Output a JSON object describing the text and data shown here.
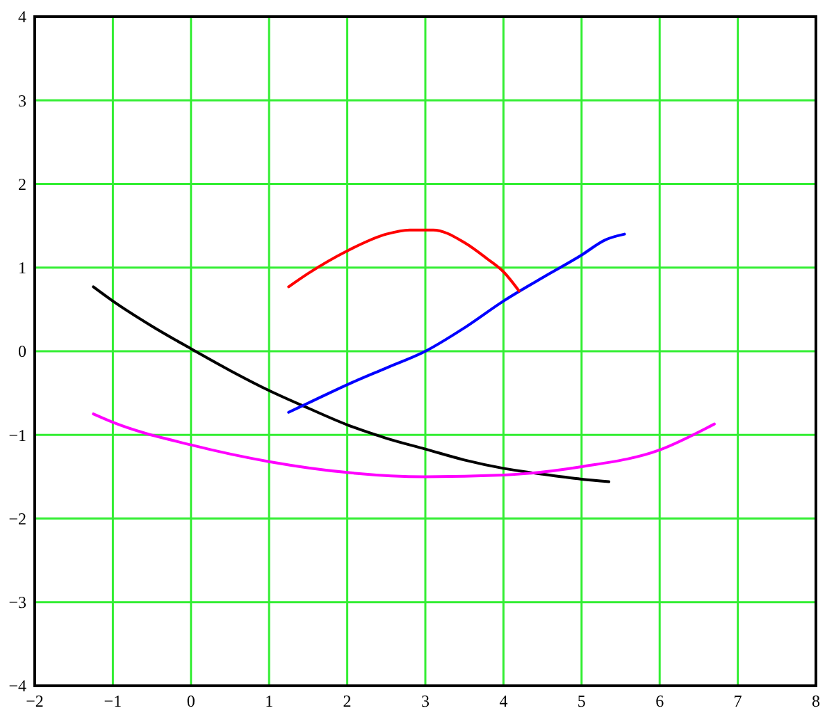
{
  "chart_data": {
    "type": "line",
    "xlim": [
      -2,
      8
    ],
    "ylim": [
      -4,
      4
    ],
    "xticks": [
      {
        "value": -2,
        "label": "−2"
      },
      {
        "value": -1,
        "label": "−1"
      },
      0,
      1,
      2,
      3,
      4,
      5,
      6,
      7,
      8
    ],
    "yticks": [
      {
        "value": -4,
        "label": "−4"
      },
      {
        "value": -3,
        "label": "−3"
      },
      {
        "value": -2,
        "label": "−2"
      },
      {
        "value": -1,
        "label": "−1"
      },
      0,
      1,
      2,
      3,
      4
    ],
    "grid": true,
    "marker": "none",
    "line_style": "solid",
    "series": [
      {
        "color": "#000000",
        "x": [
          -1.25,
          -1,
          -0.5,
          0,
          0.5,
          1,
          1.5,
          2,
          2.5,
          3,
          3.5,
          4,
          4.5,
          5,
          5.35
        ],
        "values": [
          0.77,
          0.6,
          0.3,
          0.03,
          -0.23,
          -0.47,
          -0.68,
          -0.88,
          -1.04,
          -1.17,
          -1.3,
          -1.4,
          -1.47,
          -1.53,
          -1.56
        ]
      },
      {
        "color": "#0000ff",
        "x": [
          1.25,
          1.5,
          2,
          2.5,
          3,
          3.5,
          4,
          4.5,
          5,
          5.3,
          5.55
        ],
        "values": [
          -0.73,
          -0.62,
          -0.4,
          -0.2,
          0.0,
          0.28,
          0.6,
          0.88,
          1.15,
          1.33,
          1.4
        ]
      },
      {
        "color": "#ff0000",
        "x": [
          1.25,
          1.5,
          2,
          2.5,
          2.8,
          3.1,
          3.5,
          3.8,
          4,
          4.2
        ],
        "values": [
          0.77,
          0.93,
          1.2,
          1.4,
          1.45,
          1.45,
          1.3,
          1.1,
          0.95,
          0.72
        ]
      },
      {
        "color": "#ff00ff",
        "x": [
          -1.25,
          -1,
          0,
          1,
          2,
          3,
          4,
          5,
          6,
          6.7
        ],
        "values": [
          -0.75,
          -0.85,
          -1.12,
          -1.32,
          -1.45,
          -1.5,
          -1.48,
          -1.38,
          -1.18,
          -0.87
        ]
      }
    ]
  }
}
